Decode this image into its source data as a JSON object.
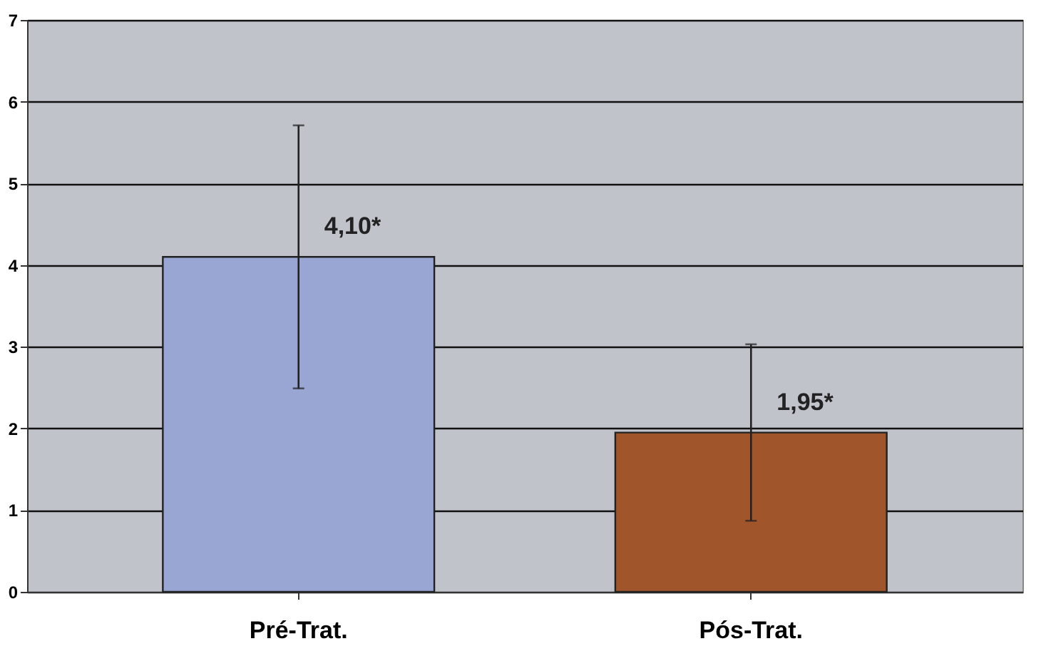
{
  "chart_data": {
    "type": "bar",
    "categories": [
      "Pré-Trat.",
      "Pós-Trat."
    ],
    "values": [
      4.1,
      1.95
    ],
    "colors": [
      "#99a5d3",
      "#a0552b"
    ],
    "errors": [
      1.61,
      1.08
    ],
    "value_labels": [
      "4,10*",
      "1,95*"
    ],
    "ylim": [
      0,
      7
    ],
    "yticks": [
      0,
      1,
      2,
      3,
      4,
      5,
      6,
      7
    ],
    "grid": "y"
  }
}
